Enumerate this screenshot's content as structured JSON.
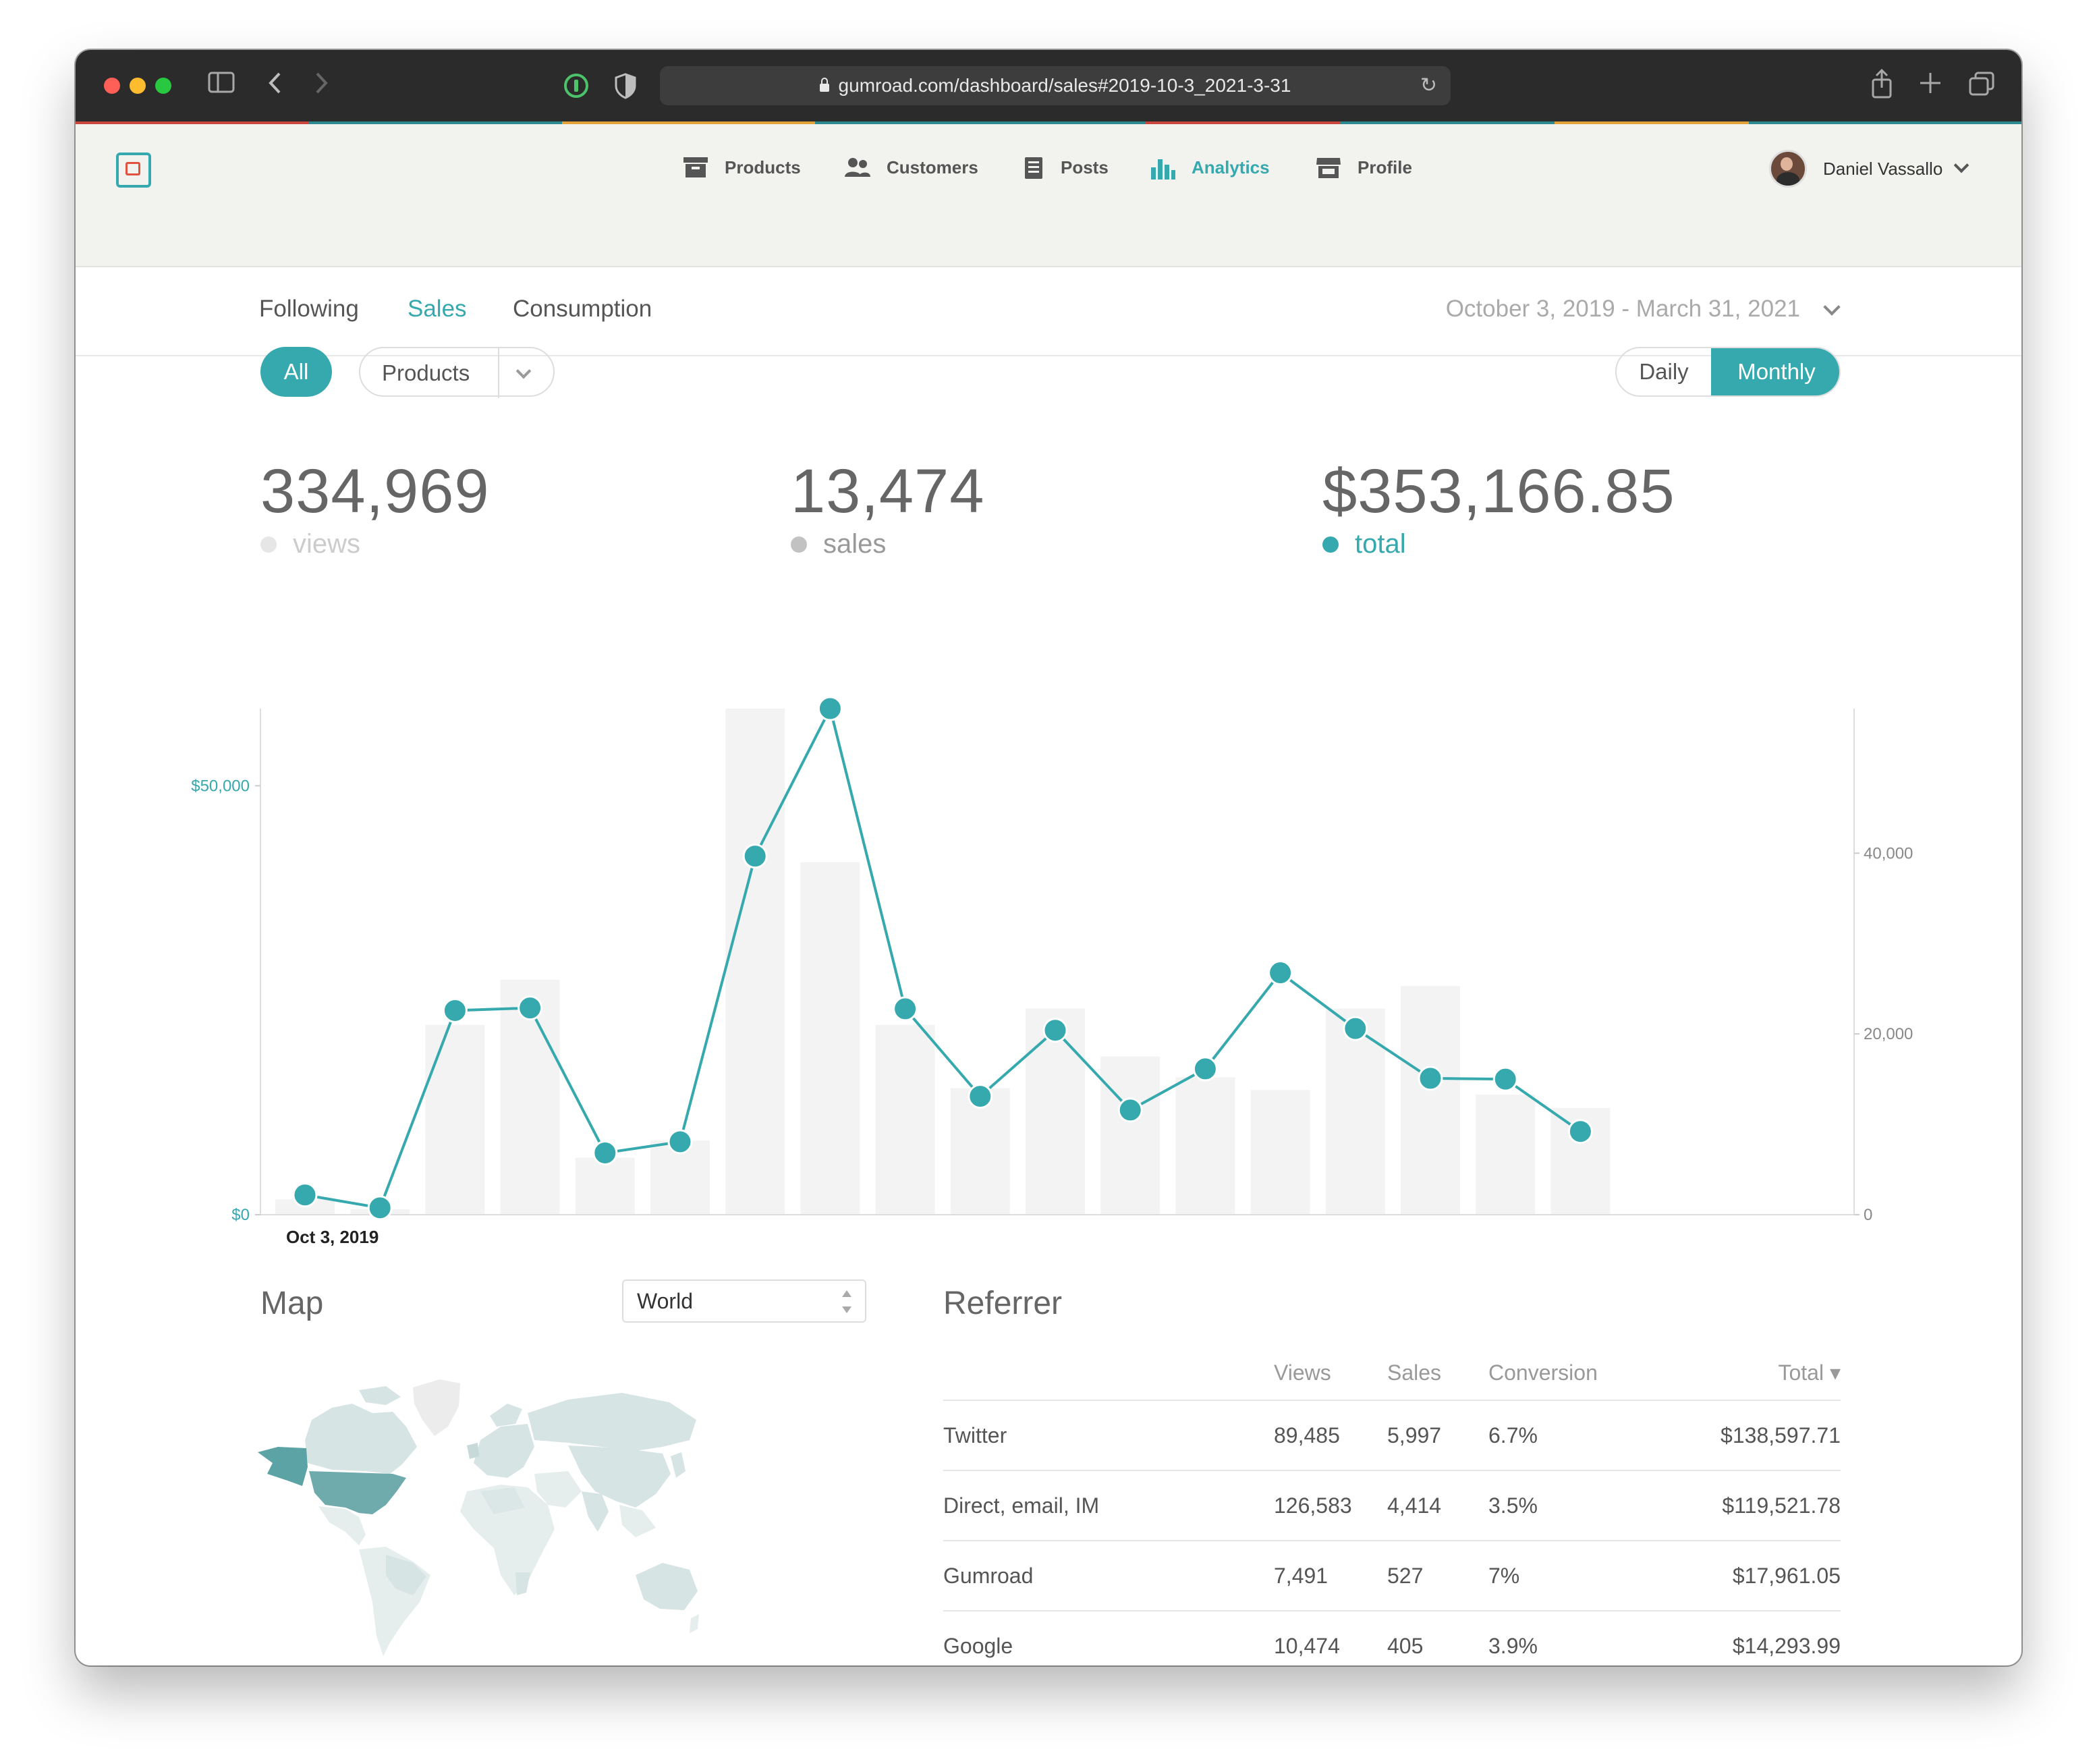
{
  "browser": {
    "url": "gumroad.com/dashboard/sales#2019-10-3_2021-3-31"
  },
  "nav": {
    "items": [
      {
        "label": "Products",
        "icon": "archive-box-icon"
      },
      {
        "label": "Customers",
        "icon": "people-icon"
      },
      {
        "label": "Posts",
        "icon": "document-icon"
      },
      {
        "label": "Analytics",
        "icon": "bar-chart-icon"
      },
      {
        "label": "Profile",
        "icon": "storefront-icon"
      }
    ],
    "active": "Analytics",
    "user_name": "Daniel Vassallo"
  },
  "subnav": {
    "tabs": [
      "Following",
      "Sales",
      "Consumption"
    ],
    "active": "Sales",
    "date_range": "October 3, 2019 - March 31, 2021"
  },
  "filters": {
    "all_label": "All",
    "products_label": "Products",
    "daily_label": "Daily",
    "monthly_label": "Monthly"
  },
  "stats": {
    "views": {
      "value": "334,969",
      "label": "views"
    },
    "sales": {
      "value": "13,474",
      "label": "sales"
    },
    "total": {
      "value": "$353,166.85",
      "label": "total"
    }
  },
  "colors": {
    "accent": "#36a9ae",
    "bar": "#f3f3f3",
    "views_dot": "#e6e6e6",
    "sales_dot": "#c2c2c2"
  },
  "chart_data": {
    "type": "line",
    "left_axis_ticks": [
      "$50,000",
      "$0"
    ],
    "left_ylim": [
      0,
      59000
    ],
    "right_axis_ticks": [
      "40,000",
      "20,000",
      "0"
    ],
    "right_ylim": [
      0,
      56000
    ],
    "x_first_label": "Oct 3, 2019",
    "series": [
      {
        "axis": "left",
        "values": [
          2300,
          800,
          23800,
          24100,
          7200,
          8500,
          41800,
          59000,
          24000,
          13800,
          21500,
          12200,
          17000,
          28200,
          21700,
          15900,
          15800,
          9700
        ]
      },
      {
        "axis": "right",
        "values": [
          1700,
          600,
          21000,
          26000,
          6300,
          8200,
          56000,
          39000,
          21000,
          14000,
          22800,
          17500,
          15200,
          13800,
          22800,
          25300,
          13300,
          11800
        ]
      }
    ]
  },
  "map": {
    "title": "Map",
    "region": "World"
  },
  "referrer": {
    "title": "Referrer",
    "columns": [
      "Views",
      "Sales",
      "Conversion",
      "Total ▾"
    ],
    "rows": [
      {
        "name": "Twitter",
        "views": "89,485",
        "sales": "5,997",
        "conversion": "6.7%",
        "total": "$138,597.71"
      },
      {
        "name": "Direct, email, IM",
        "views": "126,583",
        "sales": "4,414",
        "conversion": "3.5%",
        "total": "$119,521.78"
      },
      {
        "name": "Gumroad",
        "views": "7,491",
        "sales": "527",
        "conversion": "7%",
        "total": "$17,961.05"
      },
      {
        "name": "Google",
        "views": "10,474",
        "sales": "405",
        "conversion": "3.9%",
        "total": "$14,293.99"
      }
    ]
  }
}
